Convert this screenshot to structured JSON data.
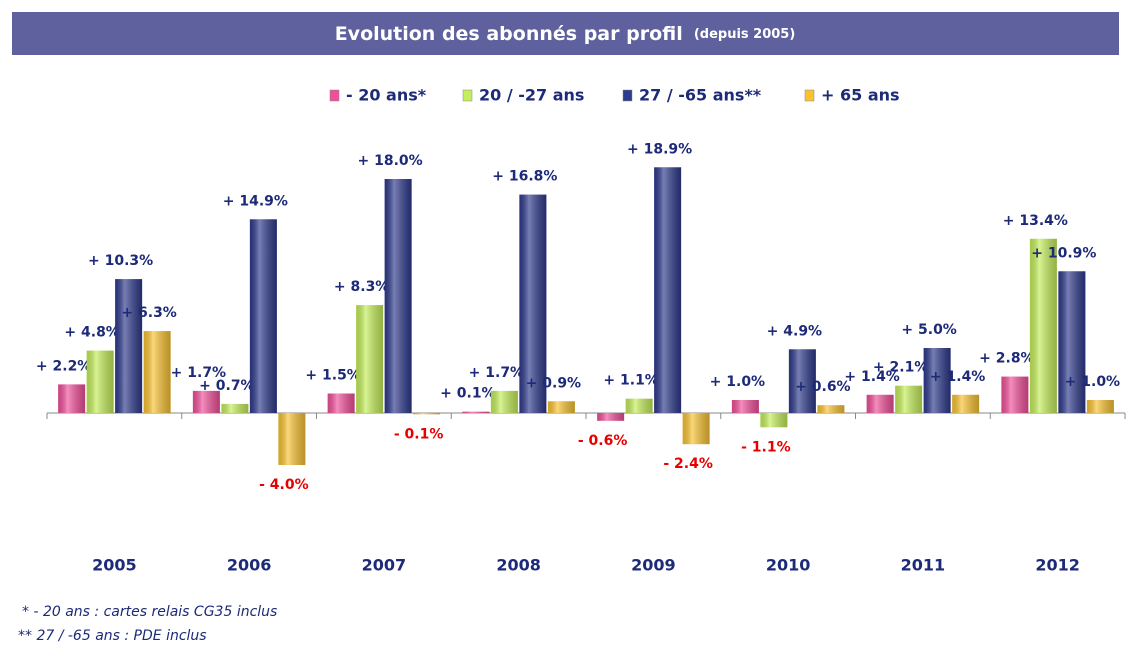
{
  "chart_data": {
    "type": "bar",
    "title": "Evolution des abonnés par profil",
    "subtitle": "(depuis 2005)",
    "categories": [
      "2005",
      "2006",
      "2007",
      "2008",
      "2009",
      "2010",
      "2011",
      "2012"
    ],
    "series": [
      {
        "name": "- 20 ans*",
        "color": "#f0509a",
        "values": [
          2.2,
          1.7,
          1.5,
          0.1,
          -0.6,
          1.0,
          1.4,
          2.8
        ],
        "value_labels": [
          "+ 2.2%",
          "+ 1.7%",
          "+ 1.5%",
          "+ 0.1%",
          "- 0.6%",
          "+ 1.0%",
          "+ 1.4%",
          "+ 2.8%"
        ]
      },
      {
        "name": "20 / -27 ans",
        "color": "#c4ee5a",
        "values": [
          4.8,
          0.7,
          8.3,
          1.7,
          1.1,
          -1.1,
          2.1,
          13.4
        ],
        "value_labels": [
          "+ 4.8%",
          "+ 0.7%",
          "+ 8.3%",
          "+ 1.7%",
          "+ 1.1%",
          "- 1.1%",
          "+ 2.1%",
          "+ 13.4%"
        ]
      },
      {
        "name": "27 / -65 ans**",
        "color": "#2e3a8c",
        "values": [
          10.3,
          14.9,
          18.0,
          16.8,
          18.9,
          4.9,
          5.0,
          10.9
        ],
        "value_labels": [
          "+ 10.3%",
          "+ 14.9%",
          "+ 18.0%",
          "+ 16.8%",
          "+ 18.9%",
          "+ 4.9%",
          "+ 5.0%",
          "+ 10.9%"
        ]
      },
      {
        "name": "+ 65 ans",
        "color": "#f8c232",
        "values": [
          6.3,
          -4.0,
          -0.1,
          0.9,
          -2.4,
          0.6,
          1.4,
          1.0
        ],
        "value_labels": [
          "+ 6.3%",
          "- 4.0%",
          "- 0.1%",
          "+ 0.9%",
          "- 2.4%",
          "+ 0.6%",
          "+ 1.4%",
          "+ 1.0%"
        ]
      }
    ],
    "notes": [
      "*  - 20 ans : cartes relais CG35 inclus",
      "**  27 / -65 ans : PDE inclus"
    ]
  }
}
